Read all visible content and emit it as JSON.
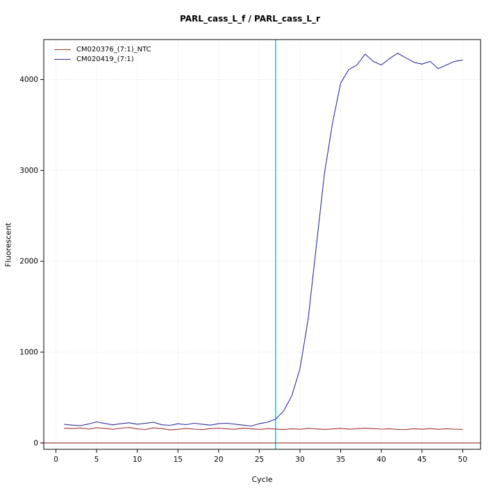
{
  "chart_data": {
    "type": "line",
    "title": "PARL_cass_L_f / PARL_cass_L_r",
    "xlabel": "Cycle",
    "ylabel": "Fluorescent",
    "xlim": [
      -1.5,
      52.2
    ],
    "ylim": [
      -70,
      4440
    ],
    "xticks": [
      0,
      5,
      10,
      15,
      20,
      25,
      30,
      35,
      40,
      45,
      50
    ],
    "yticks": [
      0,
      1000,
      2000,
      3000,
      4000
    ],
    "grid": true,
    "legend_position": "top-left",
    "x": [
      1,
      2,
      3,
      4,
      5,
      6,
      7,
      8,
      9,
      10,
      11,
      12,
      13,
      14,
      15,
      16,
      17,
      18,
      19,
      20,
      21,
      22,
      23,
      24,
      25,
      26,
      27,
      28,
      29,
      30,
      31,
      32,
      33,
      34,
      35,
      36,
      37,
      38,
      39,
      40,
      41,
      42,
      43,
      44,
      45,
      46,
      47,
      48,
      49,
      50
    ],
    "series": [
      {
        "name": "CM020376_(7:1)_NTC",
        "color": "#a03333",
        "values": [
          162,
          158,
          165,
          152,
          168,
          160,
          150,
          163,
          170,
          155,
          148,
          166,
          158,
          143,
          150,
          160,
          152,
          146,
          158,
          163,
          155,
          150,
          162,
          156,
          149,
          158,
          153,
          147,
          156,
          150,
          161,
          155,
          149,
          154,
          161,
          151,
          156,
          162,
          158,
          152,
          156,
          149,
          147,
          156,
          151,
          158,
          150,
          156,
          152,
          149
        ]
      },
      {
        "name": "CM020419_(7:1)",
        "color": "#2c2c9e",
        "values": [
          205,
          196,
          190,
          208,
          232,
          214,
          200,
          212,
          222,
          206,
          216,
          228,
          200,
          194,
          211,
          201,
          217,
          206,
          196,
          212,
          217,
          207,
          196,
          186,
          212,
          228,
          262,
          352,
          520,
          820,
          1360,
          2160,
          2960,
          3520,
          3960,
          4110,
          4160,
          4280,
          4200,
          4160,
          4230,
          4290,
          4240,
          4190,
          4170,
          4200,
          4120,
          4160,
          4200,
          4215
        ]
      }
    ],
    "threshold_line": {
      "y": 0,
      "color": "#8b1a1a"
    },
    "vline": {
      "x": 27,
      "color": "#00d8d8"
    }
  }
}
